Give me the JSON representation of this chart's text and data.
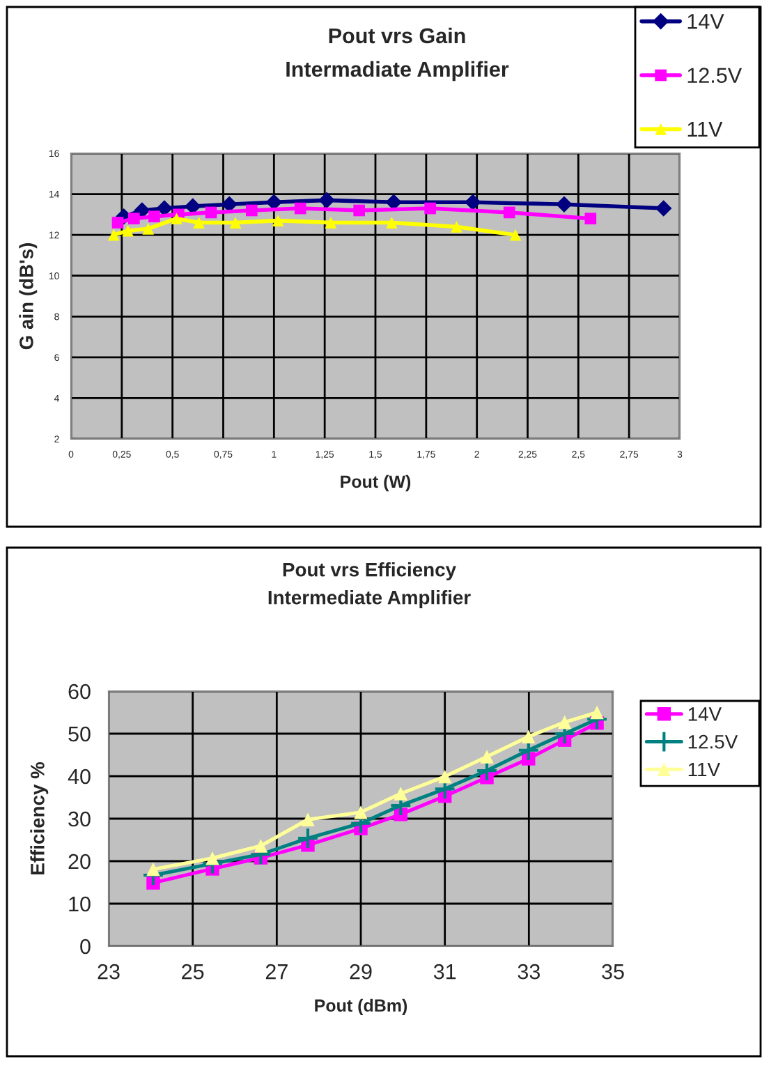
{
  "chart_data": [
    {
      "type": "line",
      "title": "Pout vrs Gain",
      "subtitle": "Intermadiate Amplifier",
      "xlabel": "Pout (W)",
      "ylabel": "G ain (dB's)",
      "xlim": [
        0,
        3
      ],
      "xticks": [
        0,
        {
          "value": 0.25,
          "label": "0,25"
        },
        {
          "value": 0.5,
          "label": "0,5"
        },
        {
          "value": 0.75,
          "label": "0,75"
        },
        1,
        {
          "value": 1.25,
          "label": "1,25"
        },
        {
          "value": 1.5,
          "label": "1,5"
        },
        {
          "value": 1.75,
          "label": "1,75"
        },
        2,
        {
          "value": 2.25,
          "label": "2,25"
        },
        {
          "value": 2.5,
          "label": "2,5"
        },
        {
          "value": 2.75,
          "label": "2,75"
        },
        3
      ],
      "ylim": [
        2,
        16
      ],
      "yticks": [
        2,
        4,
        6,
        8,
        10,
        12,
        14,
        16
      ],
      "grid": true,
      "legend": "top right",
      "series": [
        {
          "name": "14V",
          "color": "#000080",
          "marker": "diamond",
          "x": [
            0.26,
            0.35,
            0.46,
            0.6,
            0.78,
            1.0,
            1.26,
            1.59,
            1.98,
            2.43,
            2.92
          ],
          "values": [
            12.9,
            13.2,
            13.3,
            13.4,
            13.5,
            13.6,
            13.7,
            13.6,
            13.6,
            13.5,
            13.3
          ]
        },
        {
          "name": "12.5V",
          "color": "#ff00ff",
          "marker": "square",
          "x": [
            0.23,
            0.31,
            0.41,
            0.53,
            0.69,
            0.89,
            1.13,
            1.42,
            1.77,
            2.16,
            2.56
          ],
          "values": [
            12.6,
            12.8,
            12.9,
            13.0,
            13.1,
            13.2,
            13.3,
            13.2,
            13.3,
            13.1,
            12.8
          ]
        },
        {
          "name": "11V",
          "color": "#ffff00",
          "marker": "triangle",
          "x": [
            0.21,
            0.28,
            0.38,
            0.52,
            0.63,
            0.81,
            1.02,
            1.28,
            1.58,
            1.9,
            2.19
          ],
          "values": [
            12.0,
            12.2,
            12.3,
            12.8,
            12.6,
            12.6,
            12.7,
            12.6,
            12.6,
            12.4,
            12.0
          ]
        }
      ]
    },
    {
      "type": "line",
      "title": "Pout vrs Efficiency",
      "subtitle": "Intermediate Amplifier",
      "xlabel": "Pout (dBm)",
      "ylabel": "Efficiency %",
      "xlim": [
        23,
        35
      ],
      "xticks": [
        23,
        25,
        27,
        29,
        31,
        33,
        35
      ],
      "ylim": [
        0,
        60
      ],
      "yticks": [
        0,
        10,
        20,
        30,
        40,
        50,
        60
      ],
      "grid": true,
      "legend": "right",
      "series": [
        {
          "name": "14V",
          "color": "#ff00ff",
          "marker": "square",
          "x": [
            24.06,
            25.47,
            26.62,
            27.74,
            29.0,
            29.95,
            31.0,
            32.0,
            32.99,
            33.85,
            34.62
          ],
          "values": [
            14.9,
            18.2,
            20.8,
            23.8,
            27.7,
            31.0,
            35.3,
            39.7,
            44.1,
            48.5,
            52.5
          ]
        },
        {
          "name": "12.5V",
          "color": "#008080",
          "marker": "cross",
          "x": [
            24.06,
            25.47,
            26.62,
            27.74,
            29.0,
            29.95,
            31.0,
            32.0,
            32.99,
            33.85,
            34.62
          ],
          "values": [
            16.7,
            19.4,
            21.6,
            25.4,
            28.9,
            33.1,
            37.0,
            41.3,
            46.1,
            50.0,
            53.4
          ]
        },
        {
          "name": "11V",
          "color": "#ffff99",
          "marker": "triangle",
          "x": [
            24.06,
            25.47,
            26.62,
            27.74,
            29.0,
            29.95,
            31.0,
            32.0,
            32.99,
            33.85,
            34.62
          ],
          "values": [
            18.1,
            20.7,
            23.6,
            29.8,
            31.5,
            35.9,
            39.9,
            44.6,
            49.3,
            52.7,
            55.0
          ]
        }
      ]
    }
  ]
}
